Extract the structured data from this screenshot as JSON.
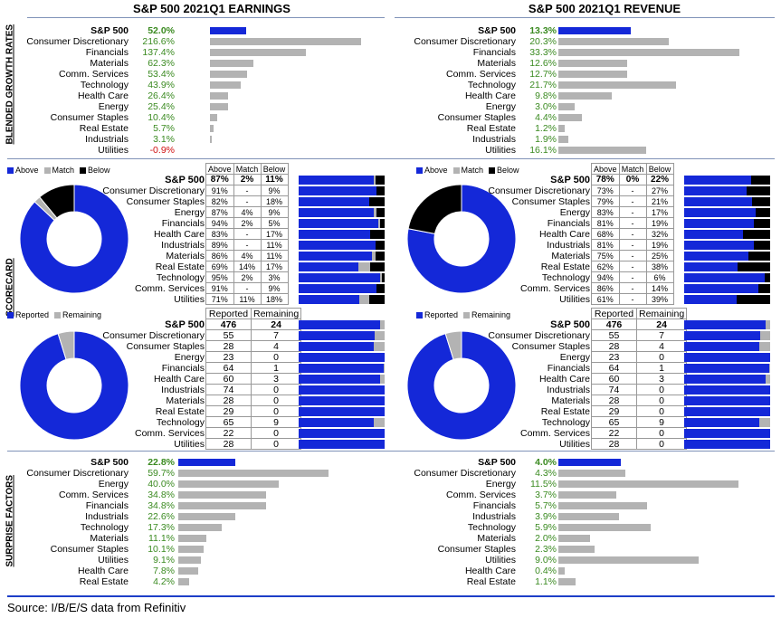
{
  "earnings_title": "S&P 500 2021Q1 EARNINGS",
  "revenue_title": "S&P 500 2021Q1 REVENUE",
  "section_labels": {
    "growth": "BLENDED GROWTH RATES",
    "scorecard": "SCORECARD",
    "surprise": "SURPRISE FACTORS"
  },
  "legend_abm": {
    "above": "Above",
    "match": "Match",
    "below": "Below"
  },
  "legend_rr": {
    "reported": "Reported",
    "remaining": "Remaining"
  },
  "colors": {
    "blue": "#1428d8",
    "gray": "#b3b3b3",
    "black": "#000000",
    "green": "#3a8a20",
    "red": "#d01010"
  },
  "source": "Source: I/B/E/S data from Refinitiv",
  "chart_data": [
    {
      "type": "bar",
      "id": "earnings_growth",
      "categories": [
        "S&P 500",
        "Consumer Discretionary",
        "Financials",
        "Materials",
        "Comm. Services",
        "Technology",
        "Health Care",
        "Energy",
        "Consumer Staples",
        "Real Estate",
        "Industrials",
        "Utilities"
      ],
      "values": [
        52.0,
        216.6,
        137.4,
        62.3,
        53.4,
        43.9,
        26.4,
        25.4,
        10.4,
        5.7,
        3.1,
        -0.9
      ],
      "labels": [
        "52.0%",
        "216.6%",
        "137.4%",
        "62.3%",
        "53.4%",
        "43.9%",
        "26.4%",
        "25.4%",
        "10.4%",
        "5.7%",
        "3.1%",
        "-0.9%"
      ],
      "xlim": [
        0,
        250
      ]
    },
    {
      "type": "bar",
      "id": "revenue_growth",
      "categories": [
        "S&P 500",
        "Consumer Discretionary",
        "Financials",
        "Materials",
        "Comm. Services",
        "Technology",
        "Health Care",
        "Energy",
        "Consumer Staples",
        "Real Estate",
        "Industrials",
        "Utilities"
      ],
      "values": [
        13.3,
        20.3,
        33.3,
        12.6,
        12.7,
        21.7,
        9.8,
        3.0,
        4.4,
        1.2,
        1.9,
        16.1
      ],
      "labels": [
        "13.3%",
        "20.3%",
        "33.3%",
        "12.6%",
        "12.7%",
        "21.7%",
        "9.8%",
        "3.0%",
        "4.4%",
        "1.2%",
        "1.9%",
        "16.1%"
      ],
      "xlim": [
        0,
        40
      ]
    },
    {
      "type": "table",
      "id": "earnings_scorecard",
      "headers": [
        "Above",
        "Match",
        "Below"
      ],
      "categories": [
        "S&P 500",
        "Consumer Discretionary",
        "Consumer Staples",
        "Energy",
        "Financials",
        "Health Care",
        "Industrials",
        "Materials",
        "Real Estate",
        "Technology",
        "Comm. Services",
        "Utilities"
      ],
      "rows": [
        [
          "87%",
          "2%",
          "11%"
        ],
        [
          "91%",
          "-",
          "9%"
        ],
        [
          "82%",
          "-",
          "18%"
        ],
        [
          "87%",
          "4%",
          "9%"
        ],
        [
          "94%",
          "2%",
          "5%"
        ],
        [
          "83%",
          "-",
          "17%"
        ],
        [
          "89%",
          "-",
          "11%"
        ],
        [
          "86%",
          "4%",
          "11%"
        ],
        [
          "69%",
          "14%",
          "17%"
        ],
        [
          "95%",
          "2%",
          "3%"
        ],
        [
          "91%",
          "-",
          "9%"
        ],
        [
          "71%",
          "11%",
          "18%"
        ]
      ],
      "stack": [
        [
          87,
          2,
          11
        ],
        [
          91,
          0,
          9
        ],
        [
          82,
          0,
          18
        ],
        [
          87,
          4,
          9
        ],
        [
          94,
          2,
          5
        ],
        [
          83,
          0,
          17
        ],
        [
          89,
          0,
          11
        ],
        [
          86,
          4,
          11
        ],
        [
          69,
          14,
          17
        ],
        [
          95,
          2,
          3
        ],
        [
          91,
          0,
          9
        ],
        [
          71,
          11,
          18
        ]
      ]
    },
    {
      "type": "table",
      "id": "revenue_scorecard",
      "headers": [
        "Above",
        "Match",
        "Below"
      ],
      "categories": [
        "S&P 500",
        "Consumer Discretionary",
        "Consumer Staples",
        "Energy",
        "Financials",
        "Health Care",
        "Industrials",
        "Materials",
        "Real Estate",
        "Technology",
        "Comm. Services",
        "Utilities"
      ],
      "rows": [
        [
          "78%",
          "0%",
          "22%"
        ],
        [
          "73%",
          "-",
          "27%"
        ],
        [
          "79%",
          "-",
          "21%"
        ],
        [
          "83%",
          "-",
          "17%"
        ],
        [
          "81%",
          "-",
          "19%"
        ],
        [
          "68%",
          "-",
          "32%"
        ],
        [
          "81%",
          "-",
          "19%"
        ],
        [
          "75%",
          "-",
          "25%"
        ],
        [
          "62%",
          "-",
          "38%"
        ],
        [
          "94%",
          "-",
          "6%"
        ],
        [
          "86%",
          "-",
          "14%"
        ],
        [
          "61%",
          "-",
          "39%"
        ]
      ],
      "stack": [
        [
          78,
          0,
          22
        ],
        [
          73,
          0,
          27
        ],
        [
          79,
          0,
          21
        ],
        [
          83,
          0,
          17
        ],
        [
          81,
          0,
          19
        ],
        [
          68,
          0,
          32
        ],
        [
          81,
          0,
          19
        ],
        [
          75,
          0,
          25
        ],
        [
          62,
          0,
          38
        ],
        [
          94,
          0,
          6
        ],
        [
          86,
          0,
          14
        ],
        [
          61,
          0,
          39
        ]
      ]
    },
    {
      "type": "table",
      "id": "earnings_reported",
      "headers": [
        "Reported",
        "Remaining"
      ],
      "categories": [
        "S&P 500",
        "Consumer Discretionary",
        "Consumer Staples",
        "Energy",
        "Financials",
        "Health Care",
        "Industrials",
        "Materials",
        "Real Estate",
        "Technology",
        "Comm. Services",
        "Utilities"
      ],
      "rows": [
        [
          "476",
          "24"
        ],
        [
          "55",
          "7"
        ],
        [
          "28",
          "4"
        ],
        [
          "23",
          "0"
        ],
        [
          "64",
          "1"
        ],
        [
          "60",
          "3"
        ],
        [
          "74",
          "0"
        ],
        [
          "28",
          "0"
        ],
        [
          "29",
          "0"
        ],
        [
          "65",
          "9"
        ],
        [
          "22",
          "0"
        ],
        [
          "28",
          "0"
        ]
      ]
    },
    {
      "type": "table",
      "id": "revenue_reported",
      "headers": [
        "Reported",
        "Remaining"
      ],
      "categories": [
        "S&P 500",
        "Consumer Discretionary",
        "Consumer Staples",
        "Energy",
        "Financials",
        "Health Care",
        "Industrials",
        "Materials",
        "Real Estate",
        "Technology",
        "Comm. Services",
        "Utilities"
      ],
      "rows": [
        [
          "476",
          "24"
        ],
        [
          "55",
          "7"
        ],
        [
          "28",
          "4"
        ],
        [
          "23",
          "0"
        ],
        [
          "64",
          "1"
        ],
        [
          "60",
          "3"
        ],
        [
          "74",
          "0"
        ],
        [
          "28",
          "0"
        ],
        [
          "29",
          "0"
        ],
        [
          "65",
          "9"
        ],
        [
          "22",
          "0"
        ],
        [
          "28",
          "0"
        ]
      ]
    },
    {
      "type": "pie",
      "id": "earnings_abm_donut",
      "values": [
        87,
        2,
        11
      ],
      "labels": [
        "Above",
        "Match",
        "Below"
      ]
    },
    {
      "type": "pie",
      "id": "revenue_abm_donut",
      "values": [
        78,
        0,
        22
      ],
      "labels": [
        "Above",
        "Match",
        "Below"
      ]
    },
    {
      "type": "pie",
      "id": "earnings_rr_donut",
      "values": [
        476,
        24
      ],
      "labels": [
        "Reported",
        "Remaining"
      ]
    },
    {
      "type": "pie",
      "id": "revenue_rr_donut",
      "values": [
        476,
        24
      ],
      "labels": [
        "Reported",
        "Remaining"
      ]
    },
    {
      "type": "bar",
      "id": "earnings_surprise",
      "categories": [
        "S&P 500",
        "Consumer Discretionary",
        "Energy",
        "Comm. Services",
        "Financials",
        "Industrials",
        "Technology",
        "Materials",
        "Consumer Staples",
        "Utilities",
        "Health Care",
        "Real Estate"
      ],
      "values": [
        22.8,
        59.7,
        40.0,
        34.8,
        34.8,
        22.6,
        17.3,
        11.1,
        10.1,
        9.1,
        7.8,
        4.2
      ],
      "labels": [
        "22.8%",
        "59.7%",
        "40.0%",
        "34.8%",
        "34.8%",
        "22.6%",
        "17.3%",
        "11.1%",
        "10.1%",
        "9.1%",
        "7.8%",
        "4.2%"
      ],
      "xlim": [
        0,
        72
      ]
    },
    {
      "type": "bar",
      "id": "revenue_surprise",
      "categories": [
        "S&P 500",
        "Consumer Discretionary",
        "Energy",
        "Comm. Services",
        "Financials",
        "Industrials",
        "Technology",
        "Materials",
        "Consumer Staples",
        "Utilities",
        "Health Care",
        "Real Estate"
      ],
      "values": [
        4.0,
        4.3,
        11.5,
        3.7,
        5.7,
        3.9,
        5.9,
        2.0,
        2.3,
        9.0,
        0.4,
        1.1
      ],
      "labels": [
        "4.0%",
        "4.3%",
        "11.5%",
        "3.7%",
        "5.7%",
        "3.9%",
        "5.9%",
        "2.0%",
        "2.3%",
        "9.0%",
        "0.4%",
        "1.1%"
      ],
      "xlim": [
        0,
        13.9
      ]
    }
  ]
}
